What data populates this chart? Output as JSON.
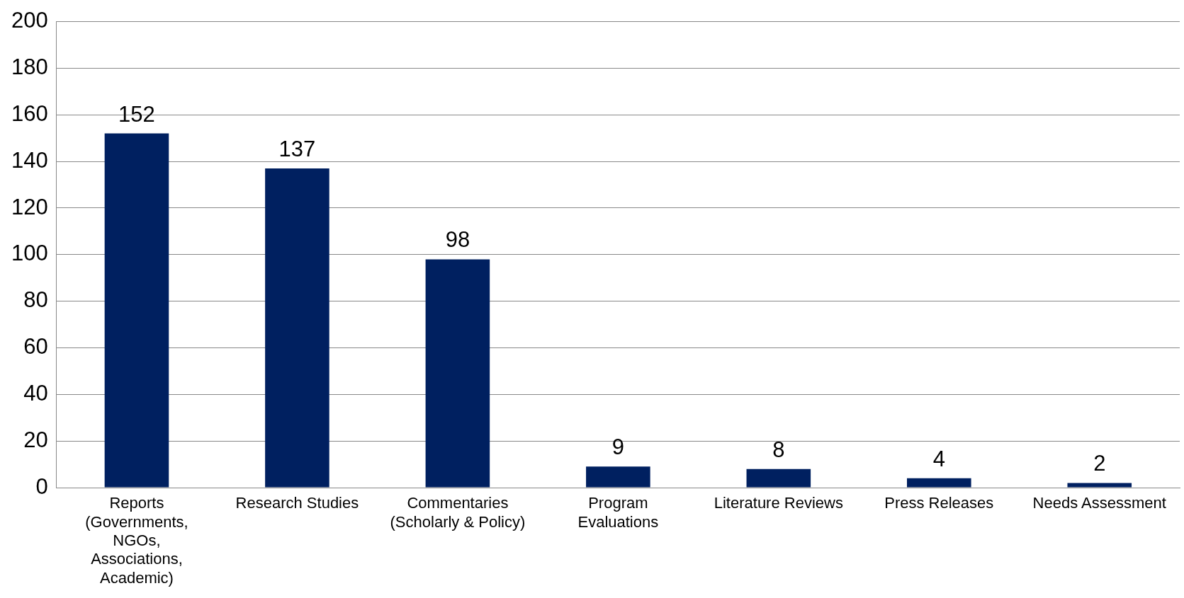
{
  "chart_data": {
    "type": "bar",
    "categories": [
      "Reports (Governments, NGOs, Associations, Academic)",
      "Research Studies",
      "Commentaries (Scholarly & Policy)",
      "Program Evaluations",
      "Literature Reviews",
      "Press Releases",
      "Needs Assessment"
    ],
    "values": [
      152,
      137,
      98,
      9,
      8,
      4,
      2
    ],
    "color": "#002060",
    "ylim": [
      0,
      200
    ],
    "yticks": [
      0,
      20,
      40,
      60,
      80,
      100,
      120,
      140,
      160,
      180,
      200
    ],
    "grid": "y",
    "data_labels": true,
    "legend": false
  }
}
